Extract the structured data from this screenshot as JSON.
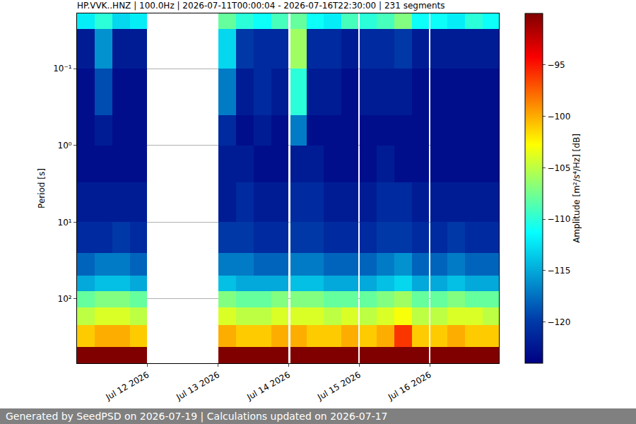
{
  "chart_data": {
    "type": "heatmap",
    "title": "HP.VVK..HNZ | 100.0Hz | 2026-07-11T00:00:04 - 2026-07-16T22:30:00 | 231 segments",
    "y_label": "Period [s]",
    "log": "y",
    "grid": "y",
    "color": "Jet",
    "x": [
      "2026-07-11 00:00",
      "2026-07-11 06:00",
      "2026-07-11 12:00",
      "2026-07-11 18:00",
      "2026-07-11 23:45",
      "2026-07-13 00:00",
      "2026-07-13 06:00",
      "2026-07-13 12:00",
      "2026-07-13 18:00",
      "2026-07-13 23:45",
      "2026-07-14 00:30",
      "2026-07-14 06:00",
      "2026-07-14 12:00",
      "2026-07-14 18:00",
      "2026-07-14 23:45",
      "2026-07-15 00:15",
      "2026-07-15 06:00",
      "2026-07-15 12:00",
      "2026-07-15 18:00",
      "2026-07-15 23:45",
      "2026-07-16 00:15",
      "2026-07-16 06:00",
      "2026-07-16 12:00",
      "2026-07-16 18:00",
      "2026-07-16 23:30"
    ],
    "y": [
      0.019,
      0.03,
      0.1,
      0.4,
      1,
      3,
      10,
      25,
      50,
      80,
      130,
      220,
      420,
      690
    ],
    "z": [
      [
        -112,
        -110,
        -113,
        -112,
        null,
        -108,
        -110,
        -111,
        -109,
        null,
        -108,
        -111,
        -112,
        -109,
        null,
        -110,
        -109,
        -107,
        -111,
        null,
        -111,
        -112,
        -110,
        -111
      ],
      [
        -122,
        -116,
        -122,
        -122,
        null,
        -113,
        -120,
        -121,
        -121,
        null,
        -106,
        -121,
        -121,
        -122,
        null,
        -121,
        -121,
        -120,
        -122,
        null,
        -122,
        -122,
        -122,
        -122
      ],
      [
        -123,
        -119,
        -123,
        -123,
        null,
        -117,
        -122,
        -121,
        -122,
        null,
        -110,
        -122,
        -122,
        -123,
        null,
        -122,
        -122,
        -122,
        -123,
        null,
        -123,
        -123,
        -123,
        -123
      ],
      [
        -123,
        -122,
        -123,
        -123,
        null,
        -121,
        -123,
        -122,
        -123,
        null,
        -117,
        -123,
        -123,
        -123,
        null,
        -123,
        -123,
        -123,
        -123,
        null,
        -123,
        -123,
        -123,
        -123
      ],
      [
        -123,
        -123,
        -123,
        -123,
        null,
        -122,
        -122,
        -123,
        -123,
        null,
        -122,
        -122,
        -123,
        -123,
        null,
        -123,
        -122,
        -123,
        -123,
        null,
        -123,
        -123,
        -123,
        -123
      ],
      [
        -122,
        -122,
        -122,
        -122,
        null,
        -122,
        -121,
        -122,
        -122,
        null,
        -121,
        -121,
        -122,
        -122,
        null,
        -122,
        -121,
        -121,
        -122,
        null,
        -122,
        -122,
        -122,
        -122
      ],
      [
        -121,
        -121,
        -120,
        -121,
        null,
        -120,
        -120,
        -121,
        -121,
        null,
        -120,
        -120,
        -121,
        -121,
        null,
        -121,
        -120,
        -120,
        -121,
        null,
        -121,
        -120,
        -121,
        -121
      ],
      [
        -118,
        -117,
        -117,
        -118,
        null,
        -117,
        -117,
        -118,
        -118,
        null,
        -117,
        -117,
        -118,
        -118,
        null,
        -118,
        -117,
        -116,
        -118,
        null,
        -118,
        -117,
        -118,
        -118
      ],
      [
        -115,
        -114,
        -114,
        -115,
        null,
        -114,
        -115,
        -115,
        -115,
        null,
        -114,
        -114,
        -115,
        -115,
        null,
        -115,
        -114,
        -113,
        -115,
        null,
        -115,
        -114,
        -115,
        -115
      ],
      [
        -108,
        -107,
        -107,
        -108,
        null,
        -107,
        -108,
        -108,
        -107,
        null,
        -107,
        -107,
        -108,
        -108,
        null,
        -108,
        -107,
        -106,
        -108,
        null,
        -108,
        -107,
        -108,
        -108
      ],
      [
        -105,
        -104,
        -104,
        -105,
        null,
        -104,
        -105,
        -105,
        -104,
        null,
        -104,
        -104,
        -105,
        -104,
        null,
        -105,
        -104,
        -103,
        -105,
        null,
        -105,
        -104,
        -104,
        -105
      ],
      [
        -101,
        -100,
        -100,
        -101,
        null,
        -100,
        -101,
        -101,
        -100,
        null,
        -100,
        -101,
        -101,
        -100,
        null,
        -101,
        -100,
        -96,
        -101,
        null,
        -101,
        -100,
        -101,
        -101
      ],
      [
        -88,
        -88,
        -88,
        -88,
        null,
        -88,
        -88,
        -88,
        -88,
        null,
        -88,
        -88,
        -88,
        -88,
        null,
        -88,
        -87,
        -88,
        -88,
        null,
        -88,
        -88,
        -88,
        -88
      ]
    ],
    "xlim": [
      "2026-07-11 00:00",
      "2026-07-16 23:30"
    ],
    "xticks": [
      {
        "value": "2026-07-12 00:00",
        "label": "Jul 12 2026"
      },
      {
        "value": "2026-07-13 00:00",
        "label": "Jul 13 2026"
      },
      {
        "value": "2026-07-14 00:00",
        "label": "Jul 14 2026"
      },
      {
        "value": "2026-07-15 00:00",
        "label": "Jul 15 2026"
      },
      {
        "value": "2026-07-16 00:00",
        "label": "Jul 16 2026"
      }
    ],
    "ylim": [
      0.019,
      690
    ],
    "yticks": [
      {
        "value": 0.1,
        "label": "10⁻¹"
      },
      {
        "value": 1,
        "label": "10⁰"
      },
      {
        "value": 10,
        "label": "10¹"
      },
      {
        "value": 100,
        "label": "10²"
      }
    ],
    "colorbar": {
      "title": "Amplitude [m²/s⁴/Hz] [dB]",
      "zlim": [
        -124,
        -90
      ],
      "zticks": [
        {
          "value": -95,
          "label": "−95"
        },
        {
          "value": -100,
          "label": "−100"
        },
        {
          "value": -105,
          "label": "−105"
        },
        {
          "value": -110,
          "label": "−110"
        },
        {
          "value": -115,
          "label": "−115"
        },
        {
          "value": -120,
          "label": "−120"
        }
      ]
    }
  },
  "footer": "Generated by SeedPSD on 2026-07-19 | Calculations updated on 2026-07-17"
}
